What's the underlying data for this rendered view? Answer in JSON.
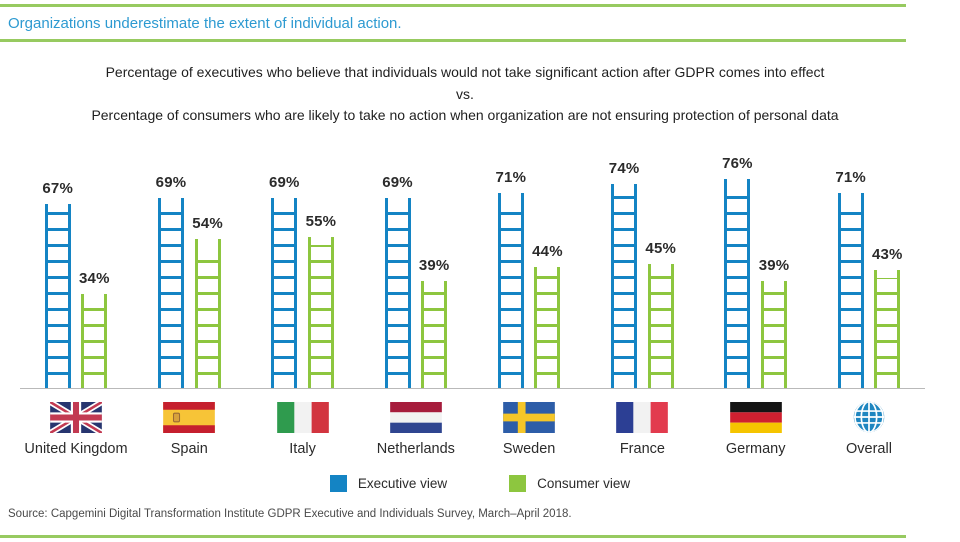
{
  "header": {
    "title": "Organizations underestimate the extent of individual action."
  },
  "subtitle": {
    "line1": "Percentage of executives who believe that individuals would not take significant action after GDPR comes into effect",
    "line2": "vs.",
    "line3": "Percentage of consumers who are likely to take no action when organization are not ensuring protection of personal data"
  },
  "colors": {
    "executive": "#1484c4",
    "consumer": "#8dc63f",
    "accent_line": "#97ca60",
    "title_blue": "#2d9ad1",
    "baseline_gray": "#b9b9b9"
  },
  "chart_data": {
    "type": "bar",
    "variant": "ladder-pictogram-pairs",
    "title": "Organizations underestimate the extent of individual action.",
    "categories": [
      "United Kingdom",
      "Spain",
      "Italy",
      "Netherlands",
      "Sweden",
      "France",
      "Germany",
      "Overall"
    ],
    "series": [
      {
        "name": "Executive view",
        "color": "#1484c4",
        "values": [
          67,
          69,
          69,
          69,
          71,
          74,
          76,
          71
        ]
      },
      {
        "name": "Consumer view",
        "color": "#8dc63f",
        "values": [
          34,
          54,
          55,
          39,
          44,
          45,
          39,
          43
        ]
      }
    ],
    "value_suffix": "%",
    "flags": [
      "flag-united-kingdom",
      "flag-spain",
      "flag-italy",
      "flag-netherlands",
      "flag-sweden",
      "flag-france",
      "flag-germany",
      "globe-overall-icon"
    ],
    "legend": [
      {
        "label": "Executive view",
        "color": "#1484c4"
      },
      {
        "label": "Consumer view",
        "color": "#8dc63f"
      }
    ],
    "ylim": [
      0,
      80
    ],
    "grid": false,
    "legend_position": "bottom-center"
  },
  "footer": {
    "source": "Source: Capgemini Digital Transformation Institute GDPR Executive and Individuals Survey, March–April 2018."
  }
}
